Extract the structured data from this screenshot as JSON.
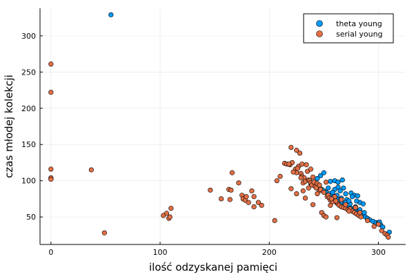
{
  "chart_data": {
    "type": "scatter",
    "title": "",
    "xlabel": "ilość odzyskanej pamięci",
    "ylabel": "czas młodej kolekcji",
    "xlim": [
      -10,
      325
    ],
    "ylim": [
      12,
      338
    ],
    "xticks": [
      0,
      100,
      200,
      300
    ],
    "yticks": [
      50,
      100,
      150,
      200,
      250,
      300
    ],
    "grid": true,
    "legend_position": "top-right",
    "series": [
      {
        "name": "theta young",
        "color": "#009AF9",
        "points": [
          [
            55,
            329
          ],
          [
            0,
            103
          ],
          [
            244,
            103
          ],
          [
            247,
            107
          ],
          [
            250,
            111
          ],
          [
            238,
            96
          ],
          [
            241,
            94
          ],
          [
            243,
            92
          ],
          [
            246,
            90
          ],
          [
            248,
            88
          ],
          [
            250,
            86
          ],
          [
            252,
            84
          ],
          [
            255,
            82
          ],
          [
            257,
            80
          ],
          [
            259,
            78
          ],
          [
            261,
            76
          ],
          [
            263,
            74
          ],
          [
            265,
            72
          ],
          [
            267,
            70
          ],
          [
            269,
            68
          ],
          [
            271,
            66
          ],
          [
            273,
            64
          ],
          [
            275,
            62
          ],
          [
            277,
            60
          ],
          [
            279,
            58
          ],
          [
            281,
            56
          ],
          [
            283,
            54
          ],
          [
            285,
            52
          ],
          [
            288,
            50
          ],
          [
            290,
            48
          ],
          [
            292,
            46
          ],
          [
            295,
            44
          ],
          [
            298,
            42
          ],
          [
            300,
            42
          ],
          [
            302,
            39
          ],
          [
            304,
            36
          ],
          [
            310,
            29
          ],
          [
            301,
            43
          ],
          [
            256,
            99
          ],
          [
            260,
            100
          ],
          [
            263,
            98
          ],
          [
            267,
            101
          ],
          [
            263,
            91
          ],
          [
            268,
            90
          ],
          [
            265,
            86
          ],
          [
            270,
            82
          ],
          [
            275,
            83
          ],
          [
            278,
            80
          ],
          [
            281,
            79
          ],
          [
            276,
            78
          ],
          [
            283,
            70
          ],
          [
            286,
            68
          ],
          [
            280,
            72
          ],
          [
            271,
            74
          ],
          [
            260,
            88
          ],
          [
            254,
            90
          ],
          [
            258,
            84
          ],
          [
            262,
            80
          ],
          [
            266,
            76
          ],
          [
            270,
            70
          ],
          [
            274,
            68
          ],
          [
            279,
            64
          ],
          [
            283,
            60
          ],
          [
            287,
            56
          ],
          [
            273,
            72
          ]
        ]
      },
      {
        "name": "serial young",
        "color": "#E26F46",
        "points": [
          [
            0,
            261
          ],
          [
            0,
            222
          ],
          [
            0,
            116
          ],
          [
            0,
            104
          ],
          [
            0,
            102
          ],
          [
            37,
            115
          ],
          [
            49,
            28
          ],
          [
            103,
            52
          ],
          [
            106,
            55
          ],
          [
            108,
            48
          ],
          [
            110,
            62
          ],
          [
            109,
            50
          ],
          [
            146,
            87
          ],
          [
            156,
            75
          ],
          [
            163,
            88
          ],
          [
            164,
            74
          ],
          [
            165,
            87
          ],
          [
            166,
            111
          ],
          [
            172,
            97
          ],
          [
            175,
            80
          ],
          [
            176,
            75
          ],
          [
            178,
            73
          ],
          [
            179,
            78
          ],
          [
            181,
            70
          ],
          [
            184,
            86
          ],
          [
            186,
            64
          ],
          [
            186,
            78
          ],
          [
            190,
            70
          ],
          [
            193,
            66
          ],
          [
            205,
            45
          ],
          [
            207,
            100
          ],
          [
            210,
            106
          ],
          [
            214,
            124
          ],
          [
            216,
            123
          ],
          [
            219,
            122
          ],
          [
            220,
            146
          ],
          [
            221,
            125
          ],
          [
            224,
            116
          ],
          [
            225,
            111
          ],
          [
            225,
            142
          ],
          [
            227,
            120
          ],
          [
            228,
            138
          ],
          [
            229,
            110
          ],
          [
            230,
            106
          ],
          [
            230,
            123
          ],
          [
            231,
            97
          ],
          [
            231,
            86
          ],
          [
            232,
            104
          ],
          [
            233,
            99
          ],
          [
            234,
            122
          ],
          [
            235,
            113
          ],
          [
            236,
            101
          ],
          [
            237,
            100
          ],
          [
            238,
            97
          ],
          [
            238,
            116
          ],
          [
            239,
            94
          ],
          [
            240,
            67
          ],
          [
            241,
            98
          ],
          [
            242,
            92
          ],
          [
            243,
            90
          ],
          [
            244,
            96
          ],
          [
            246,
            86
          ],
          [
            247,
            88
          ],
          [
            248,
            56
          ],
          [
            250,
            52
          ],
          [
            250,
            84
          ],
          [
            252,
            50
          ],
          [
            253,
            78
          ],
          [
            254,
            80
          ],
          [
            255,
            76
          ],
          [
            256,
            73
          ],
          [
            258,
            71
          ],
          [
            260,
            78
          ],
          [
            262,
            49
          ],
          [
            262,
            69
          ],
          [
            263,
            68
          ],
          [
            264,
            66
          ],
          [
            266,
            64
          ],
          [
            268,
            63
          ],
          [
            270,
            62
          ],
          [
            272,
            60
          ],
          [
            274,
            61
          ],
          [
            276,
            58
          ],
          [
            278,
            56
          ],
          [
            280,
            54
          ],
          [
            282,
            52
          ],
          [
            284,
            50
          ],
          [
            290,
            45
          ],
          [
            296,
            37
          ],
          [
            300,
            40
          ],
          [
            303,
            31
          ],
          [
            306,
            27
          ],
          [
            308,
            25
          ],
          [
            309,
            22
          ],
          [
            220,
            89
          ],
          [
            225,
            82
          ],
          [
            233,
            76
          ],
          [
            222,
            112
          ],
          [
            240,
            105
          ],
          [
            252,
            98
          ],
          [
            246,
            94
          ],
          [
            257,
            75
          ],
          [
            261,
            72
          ],
          [
            236,
            90
          ],
          [
            229,
            104
          ],
          [
            226,
            117
          ],
          [
            218,
            123
          ],
          [
            244,
            82
          ],
          [
            256,
            66
          ],
          [
            266,
            74
          ],
          [
            273,
            58
          ],
          [
            283,
            56
          ],
          [
            279,
            63
          ],
          [
            270,
            67
          ]
        ]
      }
    ]
  }
}
